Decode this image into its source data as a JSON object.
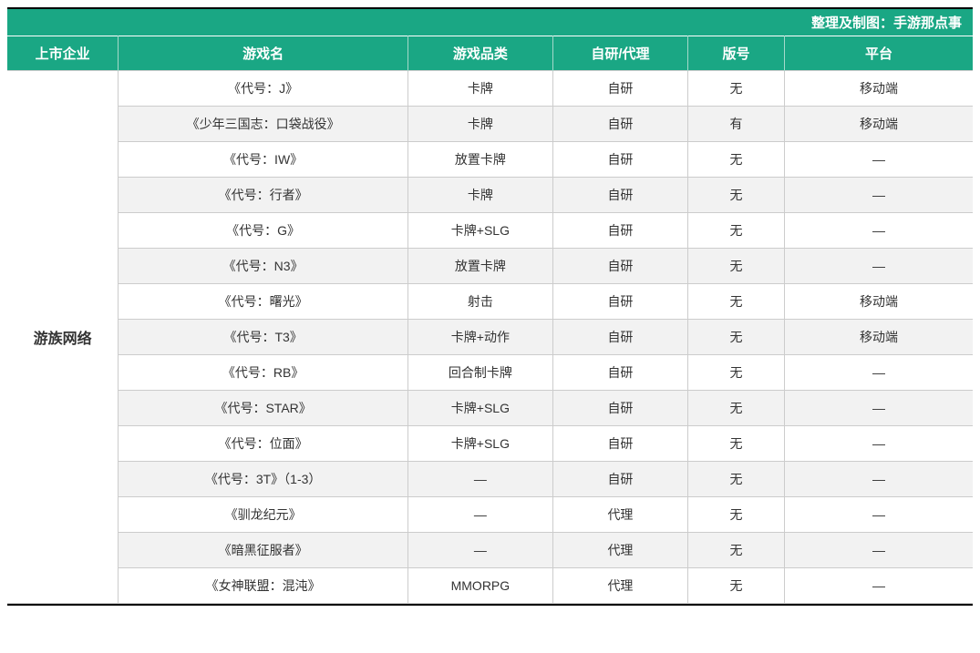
{
  "credit": "整理及制图：手游那点事",
  "columns": {
    "company": "上市企业",
    "game": "游戏名",
    "category": "游戏品类",
    "devtype": "自研/代理",
    "license": "版号",
    "platform": "平台"
  },
  "company_name": "游族网络",
  "rows": [
    {
      "game": "《代号：J》",
      "category": "卡牌",
      "devtype": "自研",
      "license": "无",
      "platform": "移动端"
    },
    {
      "game": "《少年三国志：口袋战役》",
      "category": "卡牌",
      "devtype": "自研",
      "license": "有",
      "platform": "移动端"
    },
    {
      "game": "《代号：IW》",
      "category": "放置卡牌",
      "devtype": "自研",
      "license": "无",
      "platform": "—"
    },
    {
      "game": "《代号：行者》",
      "category": "卡牌",
      "devtype": "自研",
      "license": "无",
      "platform": "—"
    },
    {
      "game": "《代号：G》",
      "category": "卡牌+SLG",
      "devtype": "自研",
      "license": "无",
      "platform": "—"
    },
    {
      "game": "《代号：N3》",
      "category": "放置卡牌",
      "devtype": "自研",
      "license": "无",
      "platform": "—"
    },
    {
      "game": "《代号：曙光》",
      "category": "射击",
      "devtype": "自研",
      "license": "无",
      "platform": "移动端"
    },
    {
      "game": "《代号：T3》",
      "category": "卡牌+动作",
      "devtype": "自研",
      "license": "无",
      "platform": "移动端"
    },
    {
      "game": "《代号：RB》",
      "category": "回合制卡牌",
      "devtype": "自研",
      "license": "无",
      "platform": "—"
    },
    {
      "game": "《代号：STAR》",
      "category": "卡牌+SLG",
      "devtype": "自研",
      "license": "无",
      "platform": "—"
    },
    {
      "game": "《代号：位面》",
      "category": "卡牌+SLG",
      "devtype": "自研",
      "license": "无",
      "platform": "—"
    },
    {
      "game": "《代号：3T》（1-3）",
      "category": "—",
      "devtype": "自研",
      "license": "无",
      "platform": "—"
    },
    {
      "game": "《驯龙纪元》",
      "category": "—",
      "devtype": "代理",
      "license": "无",
      "platform": "—"
    },
    {
      "game": "《暗黑征服者》",
      "category": "—",
      "devtype": "代理",
      "license": "无",
      "platform": "—"
    },
    {
      "game": "《女神联盟：混沌》",
      "category": "MMORPG",
      "devtype": "代理",
      "license": "无",
      "platform": "—"
    }
  ],
  "colors": {
    "header_bg": "#1aa784",
    "header_text": "#ffffff",
    "row_alt_bg": "#f2f2f2",
    "border": "#cccccc",
    "outer_border": "#000000"
  }
}
